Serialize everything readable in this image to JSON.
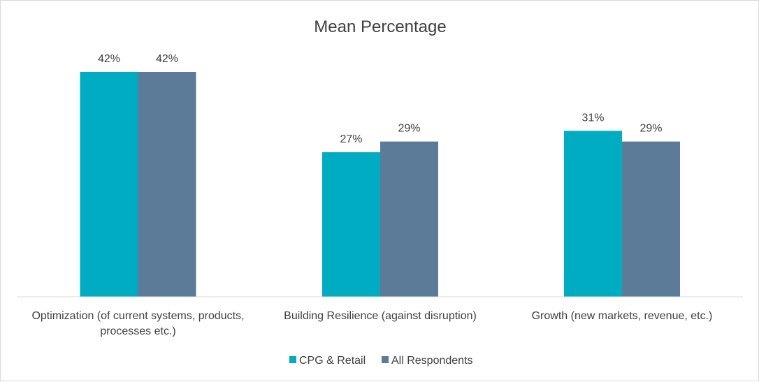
{
  "chart_data": {
    "type": "bar",
    "title": "Mean Percentage",
    "categories": [
      [
        "Optimization (of current systems, products,",
        "processes etc.)"
      ],
      [
        "Building Resilience (against disruption)"
      ],
      [
        "Growth (new markets, revenue, etc.)"
      ]
    ],
    "series": [
      {
        "name": "CPG & Retail",
        "color": "#00acc1",
        "values": [
          42,
          27,
          31
        ],
        "labels": [
          "42%",
          "27%",
          "31%"
        ]
      },
      {
        "name": "All Respondents",
        "color": "#5b7b99",
        "values": [
          42,
          29,
          29
        ],
        "labels": [
          "42%",
          "29%",
          "29%"
        ]
      }
    ],
    "xlabel": "",
    "ylabel": "",
    "ylim": [
      0,
      42
    ],
    "grid": false,
    "legend": "bottom"
  }
}
